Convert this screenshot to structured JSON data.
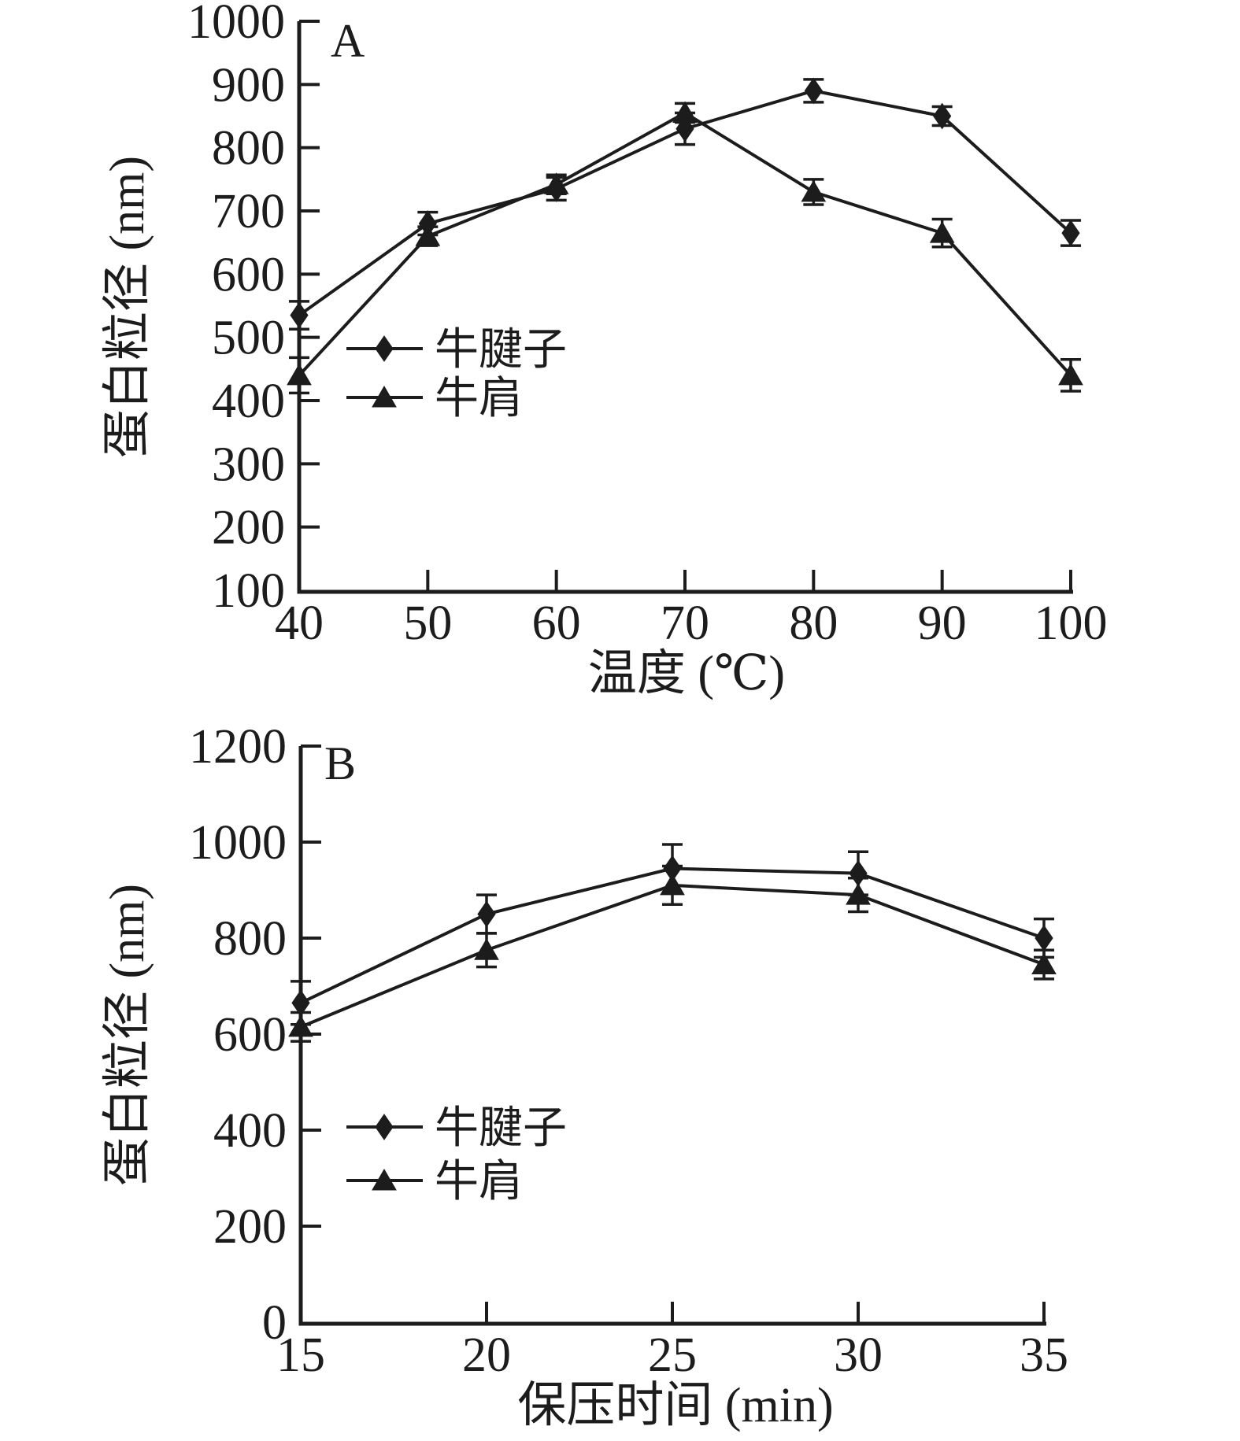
{
  "figure": {
    "description_visible_text_only": "two stacked line panels labelled A and B",
    "panel_letters": [
      "A",
      "B"
    ]
  },
  "chart_data": [
    {
      "type": "line",
      "panel_label": "A",
      "title": "",
      "xlabel": "温度 (℃)",
      "ylabel": "蛋白粒径 (nm)",
      "x": [
        40,
        50,
        60,
        70,
        80,
        90,
        100
      ],
      "xlim": [
        40,
        100
      ],
      "ylim": [
        100,
        1000
      ],
      "x_ticks": [
        40,
        50,
        60,
        70,
        80,
        90,
        100
      ],
      "y_ticks": [
        100,
        200,
        300,
        400,
        500,
        600,
        700,
        800,
        900,
        1000
      ],
      "grid": false,
      "legend_position": "inside-left-middle",
      "legend": [
        "牛腱子",
        "牛肩"
      ],
      "series": [
        {
          "name": "牛腱子",
          "marker": "diamond",
          "values": [
            535,
            680,
            735,
            830,
            890,
            850,
            665
          ],
          "errors": [
            22,
            18,
            18,
            25,
            18,
            15,
            20
          ]
        },
        {
          "name": "牛肩",
          "marker": "triangle",
          "values": [
            440,
            660,
            742,
            855,
            730,
            665,
            440
          ],
          "errors": [
            28,
            15,
            15,
            15,
            20,
            22,
            25
          ]
        }
      ]
    },
    {
      "type": "line",
      "panel_label": "B",
      "title": "",
      "xlabel": "保压时间 (min)",
      "ylabel": "蛋白粒径 (nm)",
      "x": [
        15,
        20,
        25,
        30,
        35
      ],
      "xlim": [
        15,
        35
      ],
      "ylim": [
        0,
        1200
      ],
      "x_ticks": [
        15,
        20,
        25,
        30,
        35
      ],
      "y_ticks": [
        0,
        200,
        400,
        600,
        800,
        1000,
        1200
      ],
      "grid": false,
      "legend_position": "inside-left-middle",
      "legend": [
        "牛腱子",
        "牛肩"
      ],
      "series": [
        {
          "name": "牛腱子",
          "marker": "diamond",
          "values": [
            665,
            850,
            945,
            935,
            800
          ],
          "errors": [
            45,
            40,
            50,
            45,
            40
          ]
        },
        {
          "name": "牛肩",
          "marker": "triangle",
          "values": [
            615,
            775,
            910,
            890,
            745
          ],
          "errors": [
            30,
            35,
            40,
            35,
            30
          ]
        }
      ]
    }
  ],
  "colors": {
    "ink": "#1c1c1c",
    "background": "#ffffff"
  }
}
